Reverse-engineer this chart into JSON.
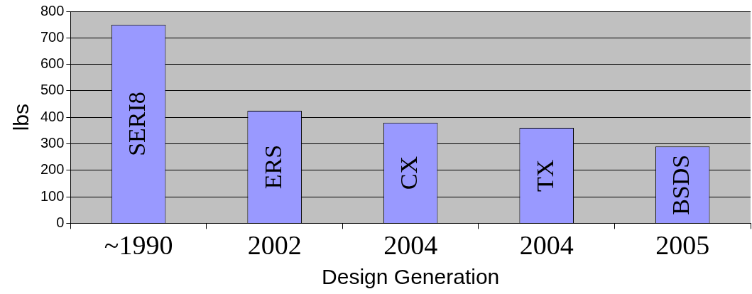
{
  "chart_data": {
    "type": "bar",
    "xlabel": "Design Generation",
    "ylabel": "lbs",
    "categories": [
      "~1990",
      "2002",
      "2004",
      "2004",
      "2005"
    ],
    "values": [
      750,
      425,
      380,
      360,
      290
    ],
    "color": "#9999ff",
    "ylim": [
      0,
      800
    ],
    "yticks": [
      0,
      100,
      200,
      300,
      400,
      500,
      600,
      700,
      800
    ],
    "grid": "y",
    "legend": false,
    "annotations": [
      "SERI8",
      "ERS",
      "CX",
      "TX",
      "BSDS"
    ]
  }
}
